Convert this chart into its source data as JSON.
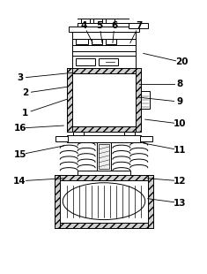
{
  "bg_color": "#ffffff",
  "line_color": "#000000",
  "labels_data": [
    [
      "1",
      28,
      182,
      76,
      198
    ],
    [
      "2",
      28,
      205,
      76,
      212
    ],
    [
      "3",
      22,
      222,
      82,
      228
    ],
    [
      "4",
      95,
      282,
      105,
      262
    ],
    [
      "5",
      113,
      282,
      116,
      262
    ],
    [
      "6",
      130,
      282,
      128,
      262
    ],
    [
      "7",
      158,
      282,
      148,
      262
    ],
    [
      "8",
      205,
      215,
      158,
      215
    ],
    [
      "9",
      205,
      195,
      158,
      200
    ],
    [
      "10",
      205,
      170,
      165,
      175
    ],
    [
      "11",
      205,
      140,
      163,
      148
    ],
    [
      "12",
      205,
      105,
      168,
      108
    ],
    [
      "13",
      205,
      80,
      168,
      85
    ],
    [
      "14",
      22,
      105,
      72,
      108
    ],
    [
      "15",
      22,
      135,
      72,
      145
    ],
    [
      "16",
      22,
      165,
      72,
      168
    ],
    [
      "20",
      207,
      240,
      163,
      250
    ]
  ]
}
